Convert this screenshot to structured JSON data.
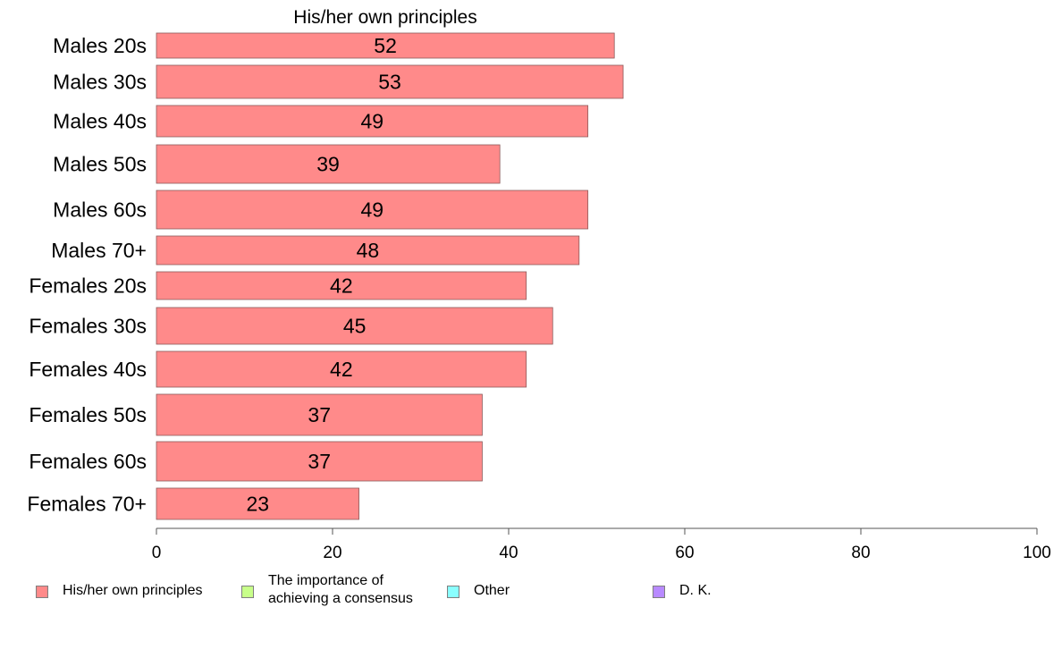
{
  "chart_data": {
    "type": "bar",
    "orientation": "horizontal",
    "title": "His/her own principles",
    "categories": [
      "Males 20s",
      "Males 30s",
      "Males 40s",
      "Males 50s",
      "Males 60s",
      "Males 70+",
      "Females 20s",
      "Females 30s",
      "Females 40s",
      "Females 50s",
      "Females 60s",
      "Females 70+"
    ],
    "values": [
      52,
      53,
      49,
      39,
      49,
      48,
      42,
      45,
      42,
      37,
      37,
      23
    ],
    "xlim": [
      0,
      100
    ],
    "xticks": [
      "0",
      "20",
      "40",
      "60",
      "80",
      "100"
    ],
    "grid": false,
    "bar_color": "#ff8a8a",
    "legend_position": "bottom"
  },
  "legend": [
    {
      "label": "His/her own principles",
      "color": "#ff8a8a"
    },
    {
      "label": "The importance of\nachieving a consensus",
      "color": "#c8ff8a"
    },
    {
      "label": "Other",
      "color": "#8affff"
    },
    {
      "label": "D. K.",
      "color": "#b88aff"
    }
  ]
}
